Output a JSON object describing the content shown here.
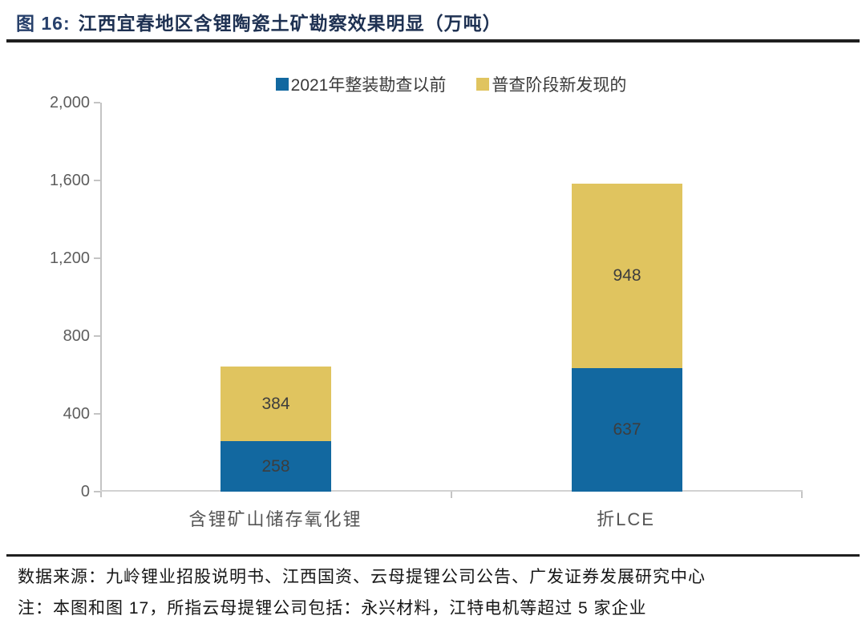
{
  "header": {
    "fig_label": "图 16:",
    "title": "江西宜春地区含锂陶瓷土矿勘察效果明显（万吨）"
  },
  "legend": {
    "items": [
      {
        "label": "2021年整装勘查以前",
        "color": "#1268A0"
      },
      {
        "label": "普查阶段新发现的",
        "color": "#E0C45F"
      }
    ]
  },
  "chart_data": {
    "type": "bar",
    "stacked": true,
    "title": "江西宜春地区含锂陶瓷土矿勘察效果明显（万吨）",
    "xlabel": "",
    "ylabel": "",
    "unit": "万吨",
    "categories": [
      "含锂矿山储存氧化锂",
      "折LCE"
    ],
    "series": [
      {
        "name": "2021年整装勘查以前",
        "color": "#1268A0",
        "values": [
          258,
          637
        ]
      },
      {
        "name": "普查阶段新发现的",
        "color": "#E0C45F",
        "values": [
          384,
          948
        ]
      }
    ],
    "totals": [
      642,
      1585
    ],
    "ylim": [
      0,
      2000
    ],
    "yticks": [
      0,
      400,
      800,
      1200,
      1600,
      2000
    ],
    "ytick_labels": [
      "0",
      "400",
      "800",
      "1,200",
      "1,600",
      "2,000"
    ],
    "grid": false,
    "legend_position": "top"
  },
  "footer": {
    "source": "数据来源：九岭锂业招股说明书、江西国资、云母提锂公司公告、广发证券发展研究中心",
    "note": "注：本图和图 17，所指云母提锂公司包括：永兴材料，江特电机等超过 5 家企业"
  },
  "colors": {
    "series_blue": "#1268A0",
    "series_yellow": "#E0C45F",
    "title_text": "#1E3152",
    "rule": "#1F1F1F",
    "axis": "#C4C4C4",
    "tick_label": "#5E5E5E",
    "value_label": "#3D3D3D"
  }
}
